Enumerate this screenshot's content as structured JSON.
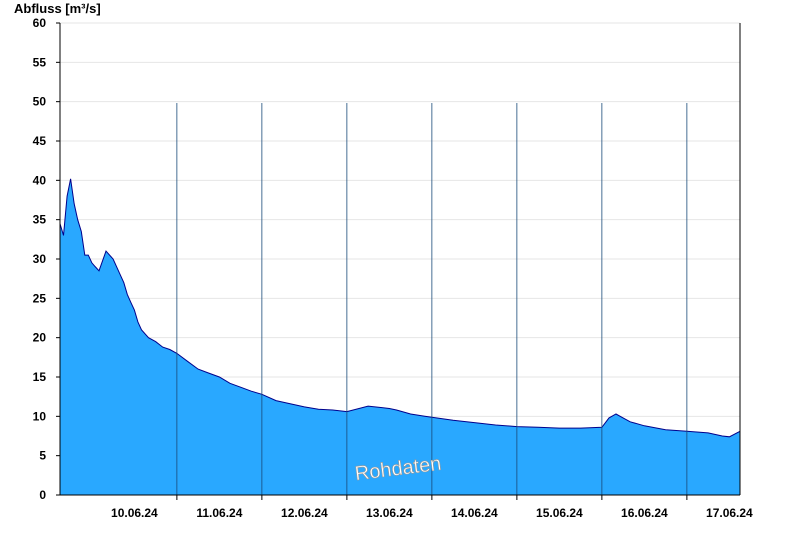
{
  "chart_data": {
    "type": "area",
    "ylabel": "Abfluss [m³/s]",
    "xlabel": "",
    "ylim": [
      0,
      60
    ],
    "yticks": [
      0,
      5,
      10,
      15,
      20,
      25,
      30,
      35,
      40,
      45,
      50,
      55,
      60
    ],
    "xlim": [
      "2024-06-09T15:00",
      "2024-06-17T15:00"
    ],
    "x_tick_labels": [
      "10.06.24",
      "11.06.24",
      "12.06.24",
      "13.06.24",
      "14.06.24",
      "15.06.24",
      "16.06.24",
      "17.06.24"
    ],
    "grid": true,
    "fill_color": "#29a8ff",
    "line_color": "#00008b",
    "watermark": "Rohdaten",
    "series": [
      {
        "x": [
          "2024-06-09T15:00",
          "2024-06-09T16:00",
          "2024-06-09T17:00",
          "2024-06-09T18:00",
          "2024-06-09T19:00",
          "2024-06-09T20:00",
          "2024-06-09T21:00",
          "2024-06-09T22:00",
          "2024-06-09T23:00",
          "2024-06-10T00:00",
          "2024-06-10T01:00",
          "2024-06-10T02:00",
          "2024-06-10T04:00",
          "2024-06-10T06:00",
          "2024-06-10T08:00",
          "2024-06-10T09:00",
          "2024-06-10T10:00",
          "2024-06-10T11:00",
          "2024-06-10T12:00",
          "2024-06-10T13:00",
          "2024-06-10T14:00",
          "2024-06-10T16:00",
          "2024-06-10T18:00",
          "2024-06-10T20:00",
          "2024-06-10T22:00",
          "2024-06-11T00:00",
          "2024-06-11T03:00",
          "2024-06-11T06:00",
          "2024-06-11T09:00",
          "2024-06-11T12:00",
          "2024-06-11T15:00",
          "2024-06-11T18:00",
          "2024-06-11T21:00",
          "2024-06-12T00:00",
          "2024-06-12T04:00",
          "2024-06-12T08:00",
          "2024-06-12T12:00",
          "2024-06-12T16:00",
          "2024-06-12T20:00",
          "2024-06-13T00:00",
          "2024-06-13T06:00",
          "2024-06-13T12:00",
          "2024-06-13T14:00",
          "2024-06-13T18:00",
          "2024-06-13T22:00",
          "2024-06-14T06:00",
          "2024-06-14T12:00",
          "2024-06-14T18:00",
          "2024-06-15T00:00",
          "2024-06-15T06:00",
          "2024-06-15T12:00",
          "2024-06-15T18:00",
          "2024-06-16T00:00",
          "2024-06-16T02:00",
          "2024-06-16T04:00",
          "2024-06-16T06:00",
          "2024-06-16T08:00",
          "2024-06-16T12:00",
          "2024-06-16T18:00",
          "2024-06-17T00:00",
          "2024-06-17T06:00",
          "2024-06-17T10:00",
          "2024-06-17T12:00",
          "2024-06-17T15:00"
        ],
        "y": [
          34.5,
          33.0,
          38.0,
          40.2,
          37.0,
          35.0,
          33.5,
          30.5,
          30.5,
          29.5,
          29.0,
          28.5,
          31.0,
          30.0,
          28.0,
          27.0,
          25.5,
          24.5,
          23.5,
          22.0,
          21.0,
          20.0,
          19.5,
          18.8,
          18.5,
          18.0,
          17.0,
          16.0,
          15.5,
          15.0,
          14.2,
          13.7,
          13.2,
          12.8,
          12.0,
          11.6,
          11.2,
          10.9,
          10.8,
          10.6,
          11.3,
          11.0,
          10.8,
          10.3,
          10.0,
          9.5,
          9.2,
          8.9,
          8.7,
          8.6,
          8.5,
          8.5,
          8.6,
          9.8,
          10.3,
          9.8,
          9.3,
          8.8,
          8.3,
          8.1,
          7.9,
          7.5,
          7.4,
          8.1
        ]
      }
    ]
  }
}
